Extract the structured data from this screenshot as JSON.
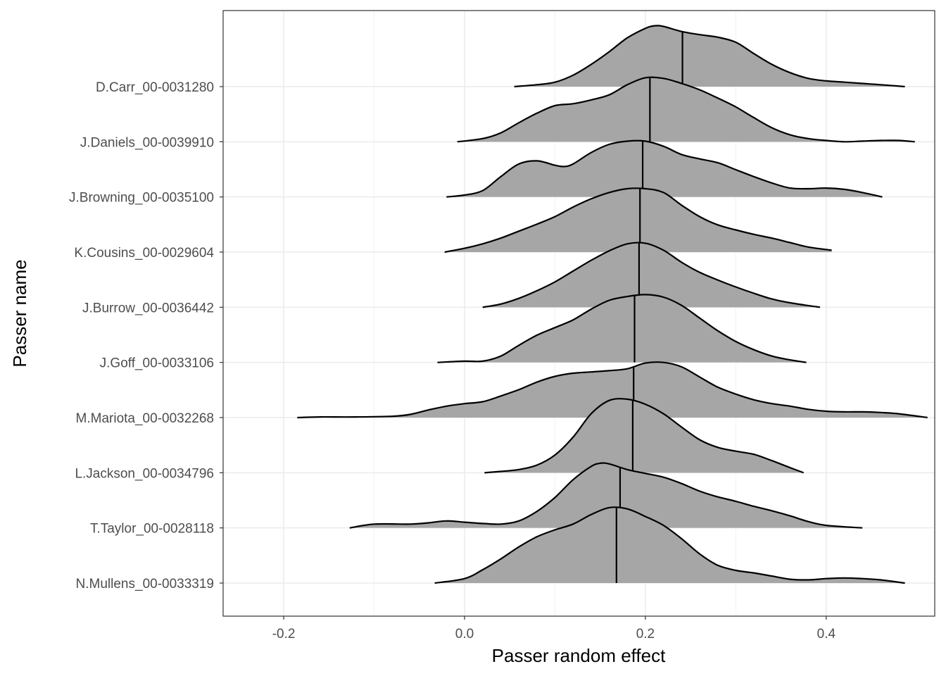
{
  "chart_data": {
    "type": "ridgeline",
    "xlabel": "Passer random effect",
    "ylabel": "Passer name",
    "xlim": [
      -0.267,
      0.52
    ],
    "x_ticks": [
      -0.2,
      0.0,
      0.2,
      0.4
    ],
    "x_tick_labels": [
      "-0.2",
      "0.0",
      "0.2",
      "0.4"
    ],
    "grid": true,
    "fill_color": "#a6a6a6",
    "line_color": "#000000",
    "grid_color": "#ebebeb",
    "series": [
      {
        "name": "D.Carr_00-0031280",
        "median": 0.241,
        "range": [
          0.055,
          0.487
        ],
        "density": [
          [
            0.055,
            0.0
          ],
          [
            0.08,
            0.03
          ],
          [
            0.1,
            0.07
          ],
          [
            0.12,
            0.18
          ],
          [
            0.14,
            0.35
          ],
          [
            0.16,
            0.55
          ],
          [
            0.18,
            0.77
          ],
          [
            0.2,
            0.92
          ],
          [
            0.21,
            0.96
          ],
          [
            0.22,
            0.95
          ],
          [
            0.24,
            0.87
          ],
          [
            0.26,
            0.82
          ],
          [
            0.28,
            0.78
          ],
          [
            0.3,
            0.7
          ],
          [
            0.32,
            0.52
          ],
          [
            0.34,
            0.35
          ],
          [
            0.36,
            0.22
          ],
          [
            0.38,
            0.13
          ],
          [
            0.4,
            0.09
          ],
          [
            0.42,
            0.07
          ],
          [
            0.44,
            0.05
          ],
          [
            0.46,
            0.03
          ],
          [
            0.487,
            0.0
          ]
        ]
      },
      {
        "name": "J.Daniels_00-0039910",
        "median": 0.205,
        "range": [
          -0.008,
          0.498
        ],
        "density": [
          [
            -0.008,
            0.0
          ],
          [
            0.02,
            0.05
          ],
          [
            0.04,
            0.14
          ],
          [
            0.06,
            0.3
          ],
          [
            0.08,
            0.45
          ],
          [
            0.1,
            0.57
          ],
          [
            0.12,
            0.6
          ],
          [
            0.14,
            0.66
          ],
          [
            0.16,
            0.74
          ],
          [
            0.18,
            0.9
          ],
          [
            0.2,
            1.01
          ],
          [
            0.22,
            1.0
          ],
          [
            0.24,
            0.92
          ],
          [
            0.26,
            0.82
          ],
          [
            0.28,
            0.69
          ],
          [
            0.3,
            0.55
          ],
          [
            0.32,
            0.38
          ],
          [
            0.34,
            0.22
          ],
          [
            0.36,
            0.11
          ],
          [
            0.38,
            0.05
          ],
          [
            0.4,
            0.02
          ],
          [
            0.42,
            0.0
          ],
          [
            0.44,
            0.01
          ],
          [
            0.46,
            0.02
          ],
          [
            0.48,
            0.02
          ],
          [
            0.498,
            0.0
          ]
        ]
      },
      {
        "name": "J.Browning_00-0035100",
        "median": 0.197,
        "range": [
          -0.02,
          0.462
        ],
        "density": [
          [
            -0.02,
            0.0
          ],
          [
            0.0,
            0.03
          ],
          [
            0.02,
            0.1
          ],
          [
            0.04,
            0.32
          ],
          [
            0.06,
            0.52
          ],
          [
            0.08,
            0.57
          ],
          [
            0.1,
            0.5
          ],
          [
            0.11,
            0.48
          ],
          [
            0.12,
            0.52
          ],
          [
            0.14,
            0.7
          ],
          [
            0.16,
            0.83
          ],
          [
            0.18,
            0.88
          ],
          [
            0.2,
            0.88
          ],
          [
            0.22,
            0.8
          ],
          [
            0.24,
            0.67
          ],
          [
            0.26,
            0.6
          ],
          [
            0.28,
            0.54
          ],
          [
            0.3,
            0.43
          ],
          [
            0.32,
            0.32
          ],
          [
            0.34,
            0.22
          ],
          [
            0.36,
            0.14
          ],
          [
            0.38,
            0.13
          ],
          [
            0.4,
            0.14
          ],
          [
            0.42,
            0.12
          ],
          [
            0.44,
            0.07
          ],
          [
            0.462,
            0.0
          ]
        ]
      },
      {
        "name": "K.Cousins_00-0029604",
        "median": 0.194,
        "range": [
          -0.022,
          0.406
        ],
        "density": [
          [
            -0.022,
            0.0
          ],
          [
            0.0,
            0.06
          ],
          [
            0.02,
            0.13
          ],
          [
            0.04,
            0.22
          ],
          [
            0.06,
            0.33
          ],
          [
            0.08,
            0.44
          ],
          [
            0.1,
            0.56
          ],
          [
            0.12,
            0.71
          ],
          [
            0.14,
            0.84
          ],
          [
            0.16,
            0.94
          ],
          [
            0.18,
            1.0
          ],
          [
            0.2,
            1.0
          ],
          [
            0.22,
            0.94
          ],
          [
            0.24,
            0.74
          ],
          [
            0.26,
            0.56
          ],
          [
            0.28,
            0.43
          ],
          [
            0.3,
            0.35
          ],
          [
            0.32,
            0.28
          ],
          [
            0.34,
            0.22
          ],
          [
            0.36,
            0.15
          ],
          [
            0.38,
            0.08
          ],
          [
            0.406,
            0.03
          ]
        ]
      },
      {
        "name": "J.Burrow_00-0036442",
        "median": 0.193,
        "range": [
          0.02,
          0.393
        ],
        "density": [
          [
            0.02,
            0.0
          ],
          [
            0.04,
            0.05
          ],
          [
            0.06,
            0.14
          ],
          [
            0.08,
            0.26
          ],
          [
            0.1,
            0.4
          ],
          [
            0.12,
            0.57
          ],
          [
            0.14,
            0.74
          ],
          [
            0.16,
            0.89
          ],
          [
            0.18,
            1.0
          ],
          [
            0.2,
            1.01
          ],
          [
            0.22,
            0.9
          ],
          [
            0.24,
            0.71
          ],
          [
            0.26,
            0.55
          ],
          [
            0.28,
            0.43
          ],
          [
            0.3,
            0.32
          ],
          [
            0.32,
            0.22
          ],
          [
            0.34,
            0.13
          ],
          [
            0.36,
            0.07
          ],
          [
            0.393,
            0.0
          ]
        ]
      },
      {
        "name": "J.Goff_00-0033106",
        "median": 0.188,
        "range": [
          -0.03,
          0.378
        ],
        "density": [
          [
            -0.03,
            0.0
          ],
          [
            0.0,
            0.02
          ],
          [
            0.02,
            0.02
          ],
          [
            0.04,
            0.1
          ],
          [
            0.06,
            0.27
          ],
          [
            0.08,
            0.43
          ],
          [
            0.1,
            0.55
          ],
          [
            0.12,
            0.67
          ],
          [
            0.14,
            0.84
          ],
          [
            0.16,
            0.98
          ],
          [
            0.18,
            1.04
          ],
          [
            0.2,
            1.07
          ],
          [
            0.22,
            1.03
          ],
          [
            0.24,
            0.9
          ],
          [
            0.26,
            0.7
          ],
          [
            0.28,
            0.5
          ],
          [
            0.3,
            0.33
          ],
          [
            0.32,
            0.2
          ],
          [
            0.34,
            0.1
          ],
          [
            0.36,
            0.04
          ],
          [
            0.378,
            0.0
          ]
        ]
      },
      {
        "name": "M.Mariota_00-0032268",
        "median": 0.187,
        "range": [
          -0.185,
          0.512
        ],
        "density": [
          [
            -0.185,
            0.0
          ],
          [
            -0.16,
            0.01
          ],
          [
            -0.12,
            0.01
          ],
          [
            -0.08,
            0.02
          ],
          [
            -0.06,
            0.05
          ],
          [
            -0.04,
            0.12
          ],
          [
            -0.02,
            0.18
          ],
          [
            0.0,
            0.22
          ],
          [
            0.02,
            0.25
          ],
          [
            0.04,
            0.34
          ],
          [
            0.06,
            0.44
          ],
          [
            0.08,
            0.56
          ],
          [
            0.1,
            0.65
          ],
          [
            0.12,
            0.7
          ],
          [
            0.14,
            0.72
          ],
          [
            0.16,
            0.74
          ],
          [
            0.18,
            0.77
          ],
          [
            0.2,
            0.86
          ],
          [
            0.22,
            0.87
          ],
          [
            0.24,
            0.8
          ],
          [
            0.26,
            0.64
          ],
          [
            0.28,
            0.48
          ],
          [
            0.3,
            0.37
          ],
          [
            0.32,
            0.28
          ],
          [
            0.34,
            0.22
          ],
          [
            0.36,
            0.18
          ],
          [
            0.38,
            0.13
          ],
          [
            0.4,
            0.1
          ],
          [
            0.42,
            0.09
          ],
          [
            0.44,
            0.09
          ],
          [
            0.46,
            0.08
          ],
          [
            0.48,
            0.06
          ],
          [
            0.512,
            0.0
          ]
        ]
      },
      {
        "name": "L.Jackson_00-0034796",
        "median": 0.186,
        "range": [
          0.022,
          0.375
        ],
        "density": [
          [
            0.022,
            0.0
          ],
          [
            0.04,
            0.02
          ],
          [
            0.06,
            0.05
          ],
          [
            0.08,
            0.12
          ],
          [
            0.1,
            0.28
          ],
          [
            0.12,
            0.56
          ],
          [
            0.14,
            0.93
          ],
          [
            0.16,
            1.14
          ],
          [
            0.18,
            1.16
          ],
          [
            0.2,
            1.08
          ],
          [
            0.22,
            0.93
          ],
          [
            0.24,
            0.72
          ],
          [
            0.26,
            0.52
          ],
          [
            0.28,
            0.4
          ],
          [
            0.3,
            0.34
          ],
          [
            0.32,
            0.29
          ],
          [
            0.34,
            0.19
          ],
          [
            0.36,
            0.08
          ],
          [
            0.375,
            0.0
          ]
        ]
      },
      {
        "name": "T.Taylor_00-0028118",
        "median": 0.172,
        "range": [
          -0.127,
          0.44
        ],
        "density": [
          [
            -0.127,
            0.0
          ],
          [
            -0.1,
            0.06
          ],
          [
            -0.06,
            0.06
          ],
          [
            -0.04,
            0.08
          ],
          [
            -0.02,
            0.11
          ],
          [
            0.0,
            0.09
          ],
          [
            0.02,
            0.07
          ],
          [
            0.04,
            0.06
          ],
          [
            0.06,
            0.11
          ],
          [
            0.08,
            0.26
          ],
          [
            0.1,
            0.48
          ],
          [
            0.12,
            0.76
          ],
          [
            0.14,
            0.97
          ],
          [
            0.15,
            1.02
          ],
          [
            0.16,
            1.01
          ],
          [
            0.18,
            0.92
          ],
          [
            0.2,
            0.86
          ],
          [
            0.22,
            0.8
          ],
          [
            0.24,
            0.7
          ],
          [
            0.26,
            0.58
          ],
          [
            0.28,
            0.49
          ],
          [
            0.3,
            0.42
          ],
          [
            0.32,
            0.34
          ],
          [
            0.34,
            0.27
          ],
          [
            0.36,
            0.19
          ],
          [
            0.38,
            0.1
          ],
          [
            0.4,
            0.04
          ],
          [
            0.44,
            0.0
          ]
        ]
      },
      {
        "name": "N.Mullens_00-0033319",
        "median": 0.168,
        "range": [
          -0.033,
          0.487
        ],
        "density": [
          [
            -0.033,
            0.0
          ],
          [
            0.0,
            0.07
          ],
          [
            0.02,
            0.21
          ],
          [
            0.04,
            0.38
          ],
          [
            0.06,
            0.57
          ],
          [
            0.08,
            0.73
          ],
          [
            0.1,
            0.84
          ],
          [
            0.12,
            0.93
          ],
          [
            0.14,
            1.08
          ],
          [
            0.16,
            1.19
          ],
          [
            0.18,
            1.17
          ],
          [
            0.2,
            1.05
          ],
          [
            0.22,
            0.91
          ],
          [
            0.24,
            0.7
          ],
          [
            0.26,
            0.46
          ],
          [
            0.28,
            0.28
          ],
          [
            0.3,
            0.2
          ],
          [
            0.32,
            0.16
          ],
          [
            0.34,
            0.11
          ],
          [
            0.36,
            0.06
          ],
          [
            0.38,
            0.05
          ],
          [
            0.4,
            0.07
          ],
          [
            0.42,
            0.08
          ],
          [
            0.44,
            0.07
          ],
          [
            0.46,
            0.05
          ],
          [
            0.487,
            0.0
          ]
        ]
      }
    ]
  }
}
